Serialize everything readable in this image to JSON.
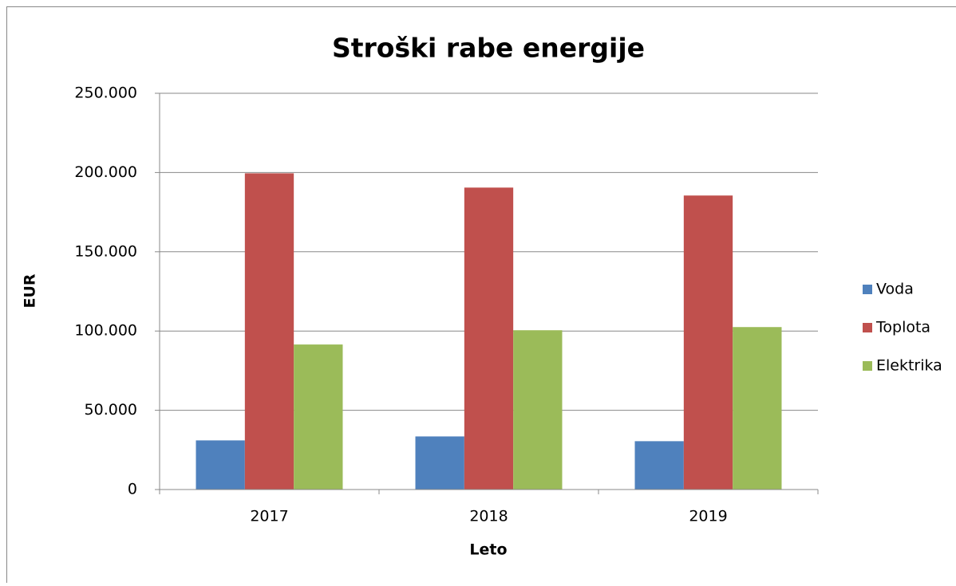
{
  "chart_data": {
    "type": "bar",
    "title": "Stroški rabe energije",
    "x_label": "Leto",
    "y_label": "EUR",
    "categories": [
      "2017",
      "2018",
      "2019"
    ],
    "series": [
      {
        "name": "Voda",
        "color": "#4f81bd",
        "values": [
          31000,
          33500,
          30500
        ]
      },
      {
        "name": "Toplota",
        "color": "#c0504d",
        "values": [
          199500,
          190500,
          185500
        ]
      },
      {
        "name": "Elektrika",
        "color": "#9bbb59",
        "values": [
          91500,
          100500,
          102500
        ]
      }
    ],
    "ylim": [
      0,
      250000
    ],
    "yticks": [
      0,
      {
        "value": 50000,
        "label": "50.000"
      },
      {
        "value": 100000,
        "label": "100.000"
      },
      {
        "value": 150000,
        "label": "150.000"
      },
      {
        "value": 200000,
        "label": "200.000"
      },
      {
        "value": 250000,
        "label": "250.000"
      }
    ],
    "grid": true,
    "legend": "right"
  }
}
